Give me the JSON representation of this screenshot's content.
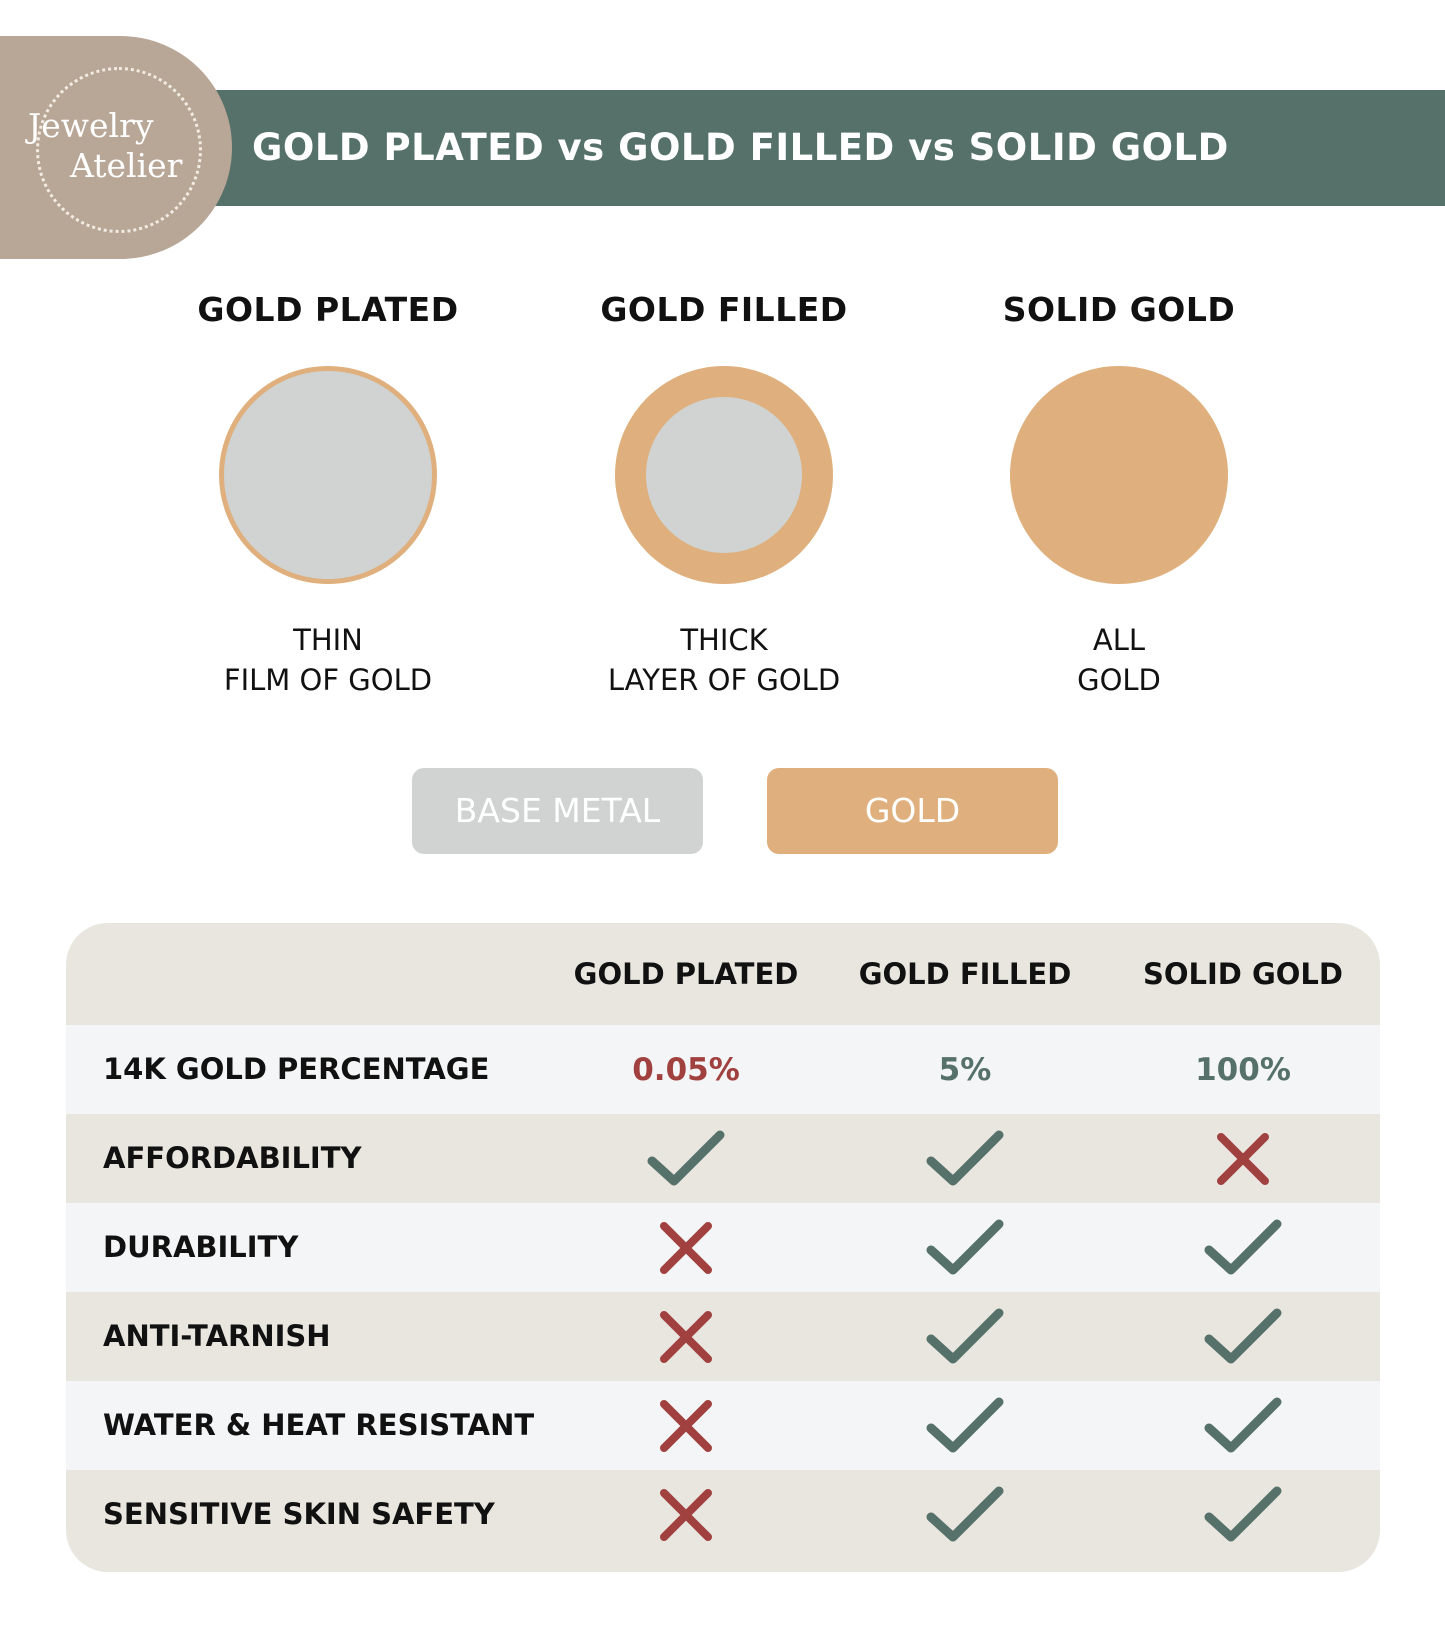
{
  "logo": {
    "line1": "Jewelry",
    "line2": "Atelier"
  },
  "header": {
    "title": "GOLD PLATED vs GOLD FILLED vs SOLID GOLD"
  },
  "types": [
    {
      "name": "GOLD PLATED",
      "desc1": "THIN",
      "desc2": "FILM OF GOLD"
    },
    {
      "name": "GOLD FILLED",
      "desc1": "THICK",
      "desc2": "LAYER OF GOLD"
    },
    {
      "name": "SOLID GOLD",
      "desc1": "ALL",
      "desc2": "GOLD"
    }
  ],
  "legend": {
    "base": "BASE METAL",
    "gold": "GOLD"
  },
  "colors": {
    "green": "#56716a",
    "gold": "#dfb07d",
    "base": "#d0d3d2",
    "red": "#a0403f",
    "taupe": "#b8a796"
  },
  "table": {
    "headers": [
      "GOLD PLATED",
      "GOLD FILLED",
      "SOLID GOLD"
    ],
    "percentage": {
      "label": "14K GOLD PERCENTAGE",
      "values": [
        "0.05%",
        "5%",
        "100%"
      ]
    },
    "rows": [
      {
        "label": "AFFORDABILITY",
        "values": [
          "check",
          "check",
          "cross"
        ]
      },
      {
        "label": "DURABILITY",
        "values": [
          "cross",
          "check",
          "check"
        ]
      },
      {
        "label": "ANTI-TARNISH",
        "values": [
          "cross",
          "check",
          "check"
        ]
      },
      {
        "label": "WATER & HEAT RESISTANT",
        "values": [
          "cross",
          "check",
          "check"
        ]
      },
      {
        "label": "SENSITIVE SKIN SAFETY",
        "values": [
          "cross",
          "check",
          "check"
        ]
      }
    ]
  }
}
